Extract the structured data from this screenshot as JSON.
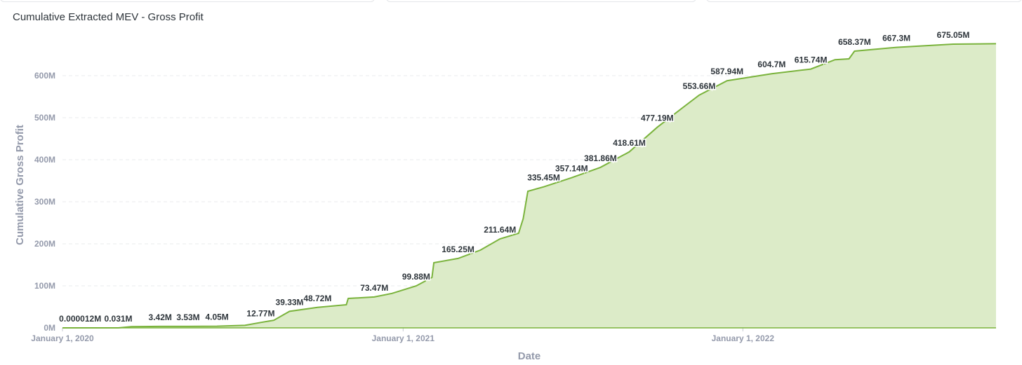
{
  "card": {
    "title": "Cumulative Extracted MEV - Gross Profit"
  },
  "colors": {
    "line": "#7ab33c",
    "area": "#dcebc8",
    "grid": "#e9ebee",
    "axis_text": "#949aab",
    "label_text": "#2e353b"
  },
  "chart_data": {
    "type": "area",
    "title": "Cumulative Extracted MEV - Gross Profit",
    "xlabel": "Date",
    "ylabel": "Cumulative Gross Profit",
    "x_range": [
      "2020-01-01",
      "2022-09-30"
    ],
    "ylim": [
      0,
      700
    ],
    "y_unit": "M",
    "y_ticks": [
      {
        "value": 0,
        "label": "0M"
      },
      {
        "value": 100,
        "label": "100M"
      },
      {
        "value": 200,
        "label": "200M"
      },
      {
        "value": 300,
        "label": "300M"
      },
      {
        "value": 400,
        "label": "400M"
      },
      {
        "value": 500,
        "label": "500M"
      },
      {
        "value": 600,
        "label": "600M"
      }
    ],
    "x_ticks": [
      {
        "date": "2020-01-01",
        "label": "January 1, 2020"
      },
      {
        "date": "2021-01-01",
        "label": "January 1, 2021"
      },
      {
        "date": "2022-01-01",
        "label": "January 1, 2022"
      }
    ],
    "series": [
      {
        "name": "Cumulative Gross Profit",
        "points": [
          {
            "date": "2020-01-01",
            "value": 1.2e-05
          },
          {
            "date": "2020-01-20",
            "value": 1.2e-05,
            "label": "0.000012M"
          },
          {
            "date": "2020-03-01",
            "value": 0.031,
            "label": "0.031M"
          },
          {
            "date": "2020-03-15",
            "value": 3.0
          },
          {
            "date": "2020-04-15",
            "value": 3.42,
            "label": "3.42M"
          },
          {
            "date": "2020-05-15",
            "value": 3.53,
            "label": "3.53M"
          },
          {
            "date": "2020-06-15",
            "value": 4.05,
            "label": "4.05M"
          },
          {
            "date": "2020-07-15",
            "value": 6.0
          },
          {
            "date": "2020-08-01",
            "value": 12.77,
            "label": "12.77M"
          },
          {
            "date": "2020-08-15",
            "value": 18.0
          },
          {
            "date": "2020-09-01",
            "value": 39.33,
            "label": "39.33M"
          },
          {
            "date": "2020-10-01",
            "value": 48.72,
            "label": "48.72M"
          },
          {
            "date": "2020-11-01",
            "value": 55.0
          },
          {
            "date": "2020-11-03",
            "value": 70.0
          },
          {
            "date": "2020-12-01",
            "value": 73.47,
            "label": "73.47M"
          },
          {
            "date": "2020-12-20",
            "value": 82.0
          },
          {
            "date": "2021-01-15",
            "value": 99.88,
            "label": "99.88M"
          },
          {
            "date": "2021-02-01",
            "value": 120.0
          },
          {
            "date": "2021-02-03",
            "value": 155.0
          },
          {
            "date": "2021-03-01",
            "value": 165.25,
            "label": "165.25M"
          },
          {
            "date": "2021-03-25",
            "value": 185.0
          },
          {
            "date": "2021-04-15",
            "value": 211.64,
            "label": "211.64M"
          },
          {
            "date": "2021-05-05",
            "value": 225.0
          },
          {
            "date": "2021-05-10",
            "value": 260.0
          },
          {
            "date": "2021-05-15",
            "value": 325.0
          },
          {
            "date": "2021-06-01",
            "value": 335.45,
            "label": "335.45M"
          },
          {
            "date": "2021-07-01",
            "value": 357.14,
            "label": "357.14M"
          },
          {
            "date": "2021-08-01",
            "value": 381.86,
            "label": "381.86M"
          },
          {
            "date": "2021-09-01",
            "value": 418.61,
            "label": "418.61M"
          },
          {
            "date": "2021-10-01",
            "value": 477.19,
            "label": "477.19M"
          },
          {
            "date": "2021-11-01",
            "value": 530.0
          },
          {
            "date": "2021-11-15",
            "value": 553.66,
            "label": "553.66M"
          },
          {
            "date": "2021-12-15",
            "value": 587.94,
            "label": "587.94M"
          },
          {
            "date": "2022-02-01",
            "value": 604.7,
            "label": "604.7M"
          },
          {
            "date": "2022-03-15",
            "value": 615.74,
            "label": "615.74M"
          },
          {
            "date": "2022-04-10",
            "value": 638.0
          },
          {
            "date": "2022-04-25",
            "value": 640.0
          },
          {
            "date": "2022-05-01",
            "value": 658.37,
            "label": "658.37M"
          },
          {
            "date": "2022-06-15",
            "value": 667.3,
            "label": "667.3M"
          },
          {
            "date": "2022-08-15",
            "value": 675.05,
            "label": "675.05M"
          },
          {
            "date": "2022-09-30",
            "value": 676.0
          }
        ]
      }
    ]
  }
}
